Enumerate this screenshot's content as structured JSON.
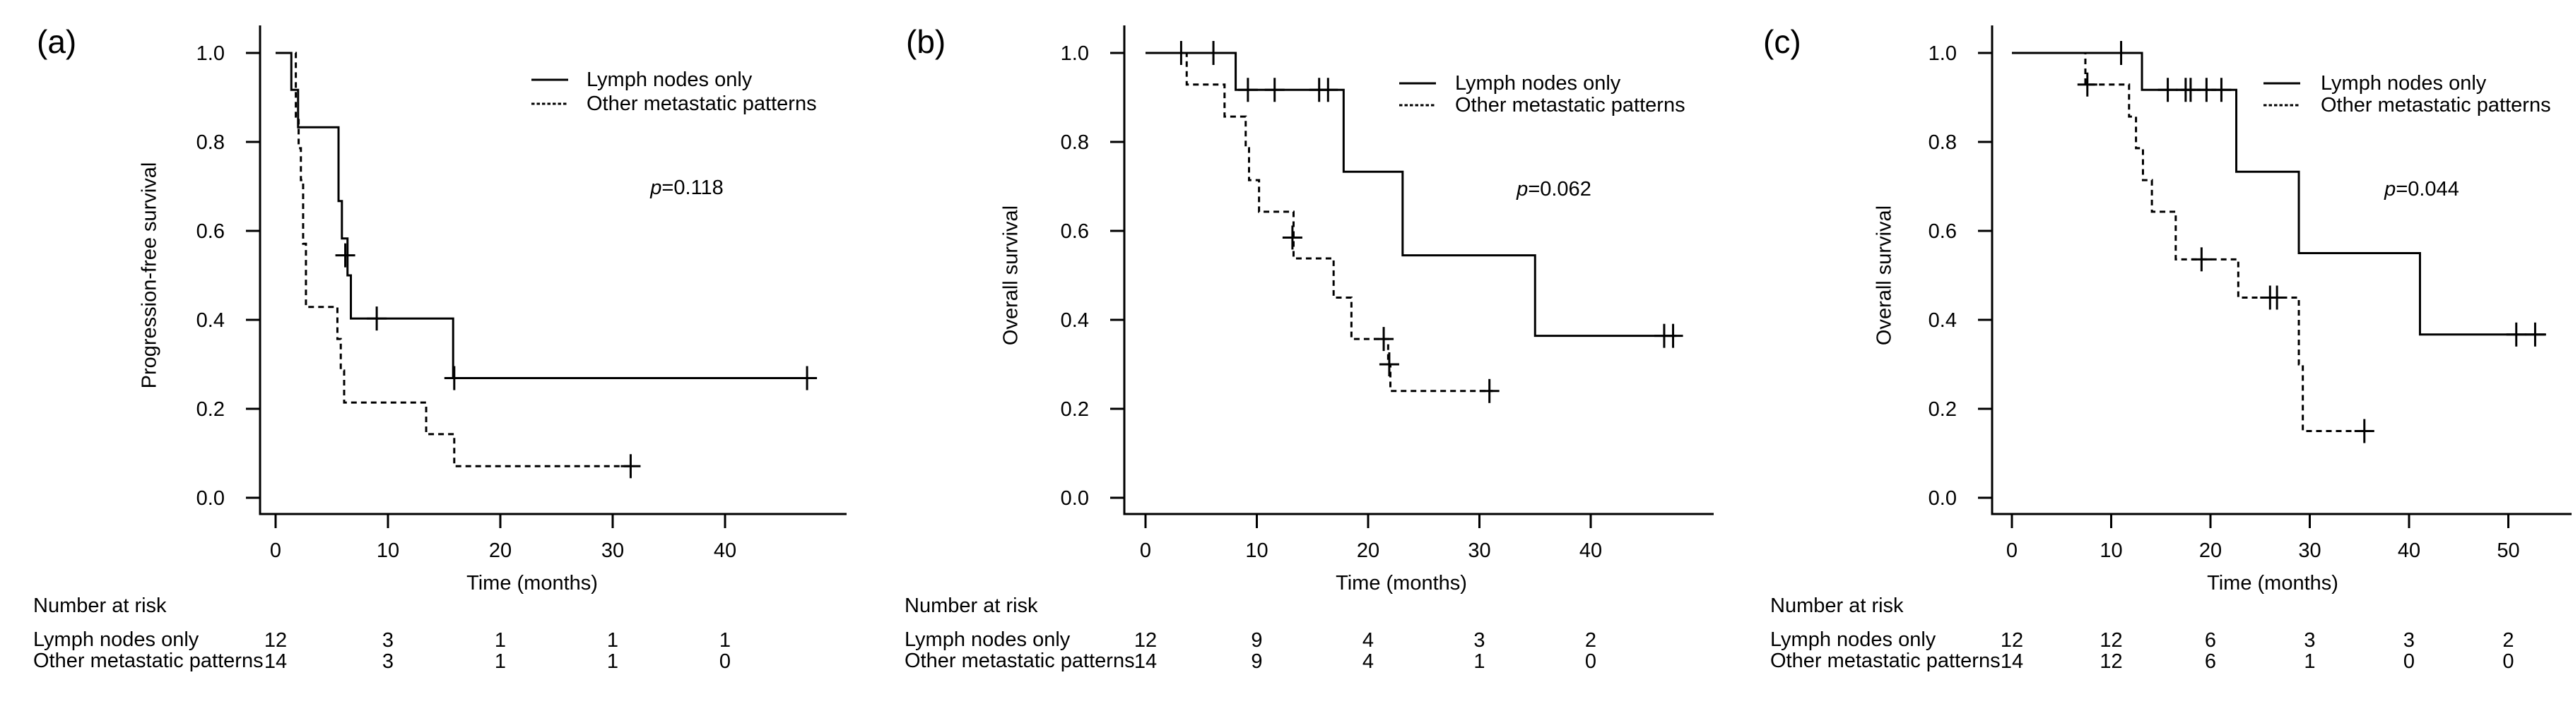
{
  "styles": {
    "background": "#ffffff",
    "line_color": "#000000"
  },
  "chart_data": [
    {
      "type": "line",
      "chart_kind": "kaplan-meier-step",
      "panel_label": "(a)",
      "xlabel": "Time (months)",
      "ylabel": "Progression-free survival",
      "p_label": "p=0.118",
      "xlim": [
        0,
        50
      ],
      "ylim": [
        0.0,
        1.0
      ],
      "x_ticks": [
        0,
        10,
        20,
        30,
        40
      ],
      "y_tick_labels": [
        "1.0",
        "0.8",
        "0.6",
        "0.4",
        "0.2",
        "0.0"
      ],
      "grid": "off",
      "legend_position": "top-right",
      "series": [
        {
          "name": "Lymph nodes only",
          "line_style": "solid",
          "start": [
            0,
            1.0
          ],
          "drops": [
            [
              1.4,
              0.917
            ],
            [
              2.0,
              0.833
            ],
            [
              5.6,
              0.667
            ],
            [
              5.9,
              0.583
            ],
            [
              6.4,
              0.5
            ],
            [
              6.7,
              0.403
            ],
            [
              15.8,
              0.269
            ]
          ],
          "end_time": 47.5,
          "censor_marks": [
            [
              6.2,
              0.545
            ],
            [
              9.0,
              0.403
            ],
            [
              15.9,
              0.269
            ],
            [
              47.3,
              0.269
            ]
          ]
        },
        {
          "name": "Other metastatic patterns",
          "line_style": "dashed",
          "start": [
            0,
            1.0
          ],
          "drops": [
            [
              1.8,
              0.857
            ],
            [
              2.05,
              0.786
            ],
            [
              2.25,
              0.714
            ],
            [
              2.45,
              0.571
            ],
            [
              2.7,
              0.429
            ],
            [
              5.5,
              0.357
            ],
            [
              5.8,
              0.286
            ],
            [
              6.1,
              0.214
            ],
            [
              13.4,
              0.143
            ],
            [
              15.9,
              0.071
            ]
          ],
          "end_time": 31.9,
          "censor_marks": [
            [
              31.6,
              0.071
            ]
          ]
        }
      ],
      "risk_table": {
        "title": "Number at risk",
        "time_points": [
          0,
          10,
          20,
          30,
          40
        ],
        "rows": [
          {
            "label": "Lymph nodes only",
            "counts": [
              "12",
              "3",
              "1",
              "1",
              "1"
            ]
          },
          {
            "label": "Other metastatic patterns",
            "counts": [
              "14",
              "3",
              "1",
              "1",
              "0"
            ]
          }
        ]
      }
    },
    {
      "type": "line",
      "chart_kind": "kaplan-meier-step",
      "panel_label": "(b)",
      "xlabel": "Time (months)",
      "ylabel": "Overall survival",
      "p_label": "p=0.062",
      "xlim": [
        0,
        50
      ],
      "ylim": [
        0.0,
        1.0
      ],
      "x_ticks": [
        0,
        10,
        20,
        30,
        40
      ],
      "y_tick_labels": [
        "1.0",
        "0.8",
        "0.6",
        "0.4",
        "0.2",
        "0.0"
      ],
      "grid": "off",
      "legend_position": "top-right",
      "series": [
        {
          "name": "Lymph nodes only",
          "line_style": "solid",
          "start": [
            0,
            1.0
          ],
          "drops": [
            [
              8.1,
              0.917
            ],
            [
              17.8,
              0.733
            ],
            [
              23.1,
              0.545
            ],
            [
              35.0,
              0.364
            ]
          ],
          "end_time": 47.7,
          "censor_marks": [
            [
              3.2,
              1.0
            ],
            [
              6.1,
              1.0
            ],
            [
              9.2,
              0.917
            ],
            [
              11.6,
              0.917
            ],
            [
              15.6,
              0.917
            ],
            [
              16.4,
              0.917
            ],
            [
              46.6,
              0.364
            ],
            [
              47.4,
              0.364
            ]
          ]
        },
        {
          "name": "Other metastatic patterns",
          "line_style": "dashed",
          "start": [
            0,
            1.0
          ],
          "drops": [
            [
              3.7,
              0.929
            ],
            [
              7.1,
              0.857
            ],
            [
              9.0,
              0.786
            ],
            [
              9.3,
              0.714
            ],
            [
              10.2,
              0.643
            ],
            [
              13.3,
              0.538
            ],
            [
              16.9,
              0.45
            ],
            [
              18.5,
              0.357
            ],
            [
              21.8,
              0.3
            ],
            [
              22.0,
              0.24
            ]
          ],
          "end_time": 31.2,
          "censor_marks": [
            [
              13.2,
              0.585
            ],
            [
              21.4,
              0.357
            ],
            [
              21.9,
              0.3
            ],
            [
              30.9,
              0.24
            ]
          ]
        }
      ],
      "risk_table": {
        "title": "Number at risk",
        "time_points": [
          0,
          10,
          20,
          30,
          40
        ],
        "rows": [
          {
            "label": "Lymph nodes only",
            "counts": [
              "12",
              "9",
              "4",
              "3",
              "2"
            ]
          },
          {
            "label": "Other metastatic patterns",
            "counts": [
              "14",
              "9",
              "4",
              "1",
              "0"
            ]
          }
        ]
      }
    },
    {
      "type": "line",
      "chart_kind": "kaplan-meier-step",
      "panel_label": "(c)",
      "xlabel": "Time (months)",
      "ylabel": "Overall survival",
      "p_label": "p=0.044",
      "xlim": [
        0,
        56
      ],
      "ylim": [
        0.0,
        1.0
      ],
      "x_ticks": [
        0,
        10,
        20,
        30,
        40,
        50
      ],
      "y_tick_labels": [
        "1.0",
        "0.8",
        "0.6",
        "0.4",
        "0.2",
        "0.0"
      ],
      "grid": "off",
      "legend_position": "top-right",
      "series": [
        {
          "name": "Lymph nodes only",
          "line_style": "solid",
          "start": [
            0,
            1.0
          ],
          "drops": [
            [
              13.1,
              0.917
            ],
            [
              22.6,
              0.733
            ],
            [
              28.9,
              0.55
            ],
            [
              41.1,
              0.367
            ]
          ],
          "end_time": 53.8,
          "censor_marks": [
            [
              11.0,
              1.0
            ],
            [
              15.7,
              0.917
            ],
            [
              17.5,
              0.917
            ],
            [
              18.0,
              0.917
            ],
            [
              19.6,
              0.917
            ],
            [
              21.1,
              0.917
            ],
            [
              50.8,
              0.367
            ],
            [
              52.7,
              0.367
            ]
          ]
        },
        {
          "name": "Other metastatic patterns",
          "line_style": "dashed",
          "start": [
            0,
            1.0
          ],
          "drops": [
            [
              7.4,
              0.929
            ],
            [
              11.8,
              0.857
            ],
            [
              12.5,
              0.786
            ],
            [
              13.2,
              0.714
            ],
            [
              14.1,
              0.643
            ],
            [
              16.5,
              0.536
            ],
            [
              22.8,
              0.45
            ],
            [
              28.9,
              0.3
            ],
            [
              29.3,
              0.15
            ]
          ],
          "end_time": 36.0,
          "censor_marks": [
            [
              7.6,
              0.929
            ],
            [
              19.1,
              0.536
            ],
            [
              26.0,
              0.45
            ],
            [
              26.7,
              0.45
            ],
            [
              35.5,
              0.15
            ]
          ]
        }
      ],
      "risk_table": {
        "title": "Number at risk",
        "time_points": [
          0,
          10,
          20,
          30,
          40,
          50
        ],
        "rows": [
          {
            "label": "Lymph nodes only",
            "counts": [
              "12",
              "12",
              "6",
              "3",
              "3",
              "2"
            ]
          },
          {
            "label": "Other metastatic patterns",
            "counts": [
              "14",
              "12",
              "6",
              "1",
              "0",
              "0"
            ]
          }
        ]
      }
    }
  ]
}
